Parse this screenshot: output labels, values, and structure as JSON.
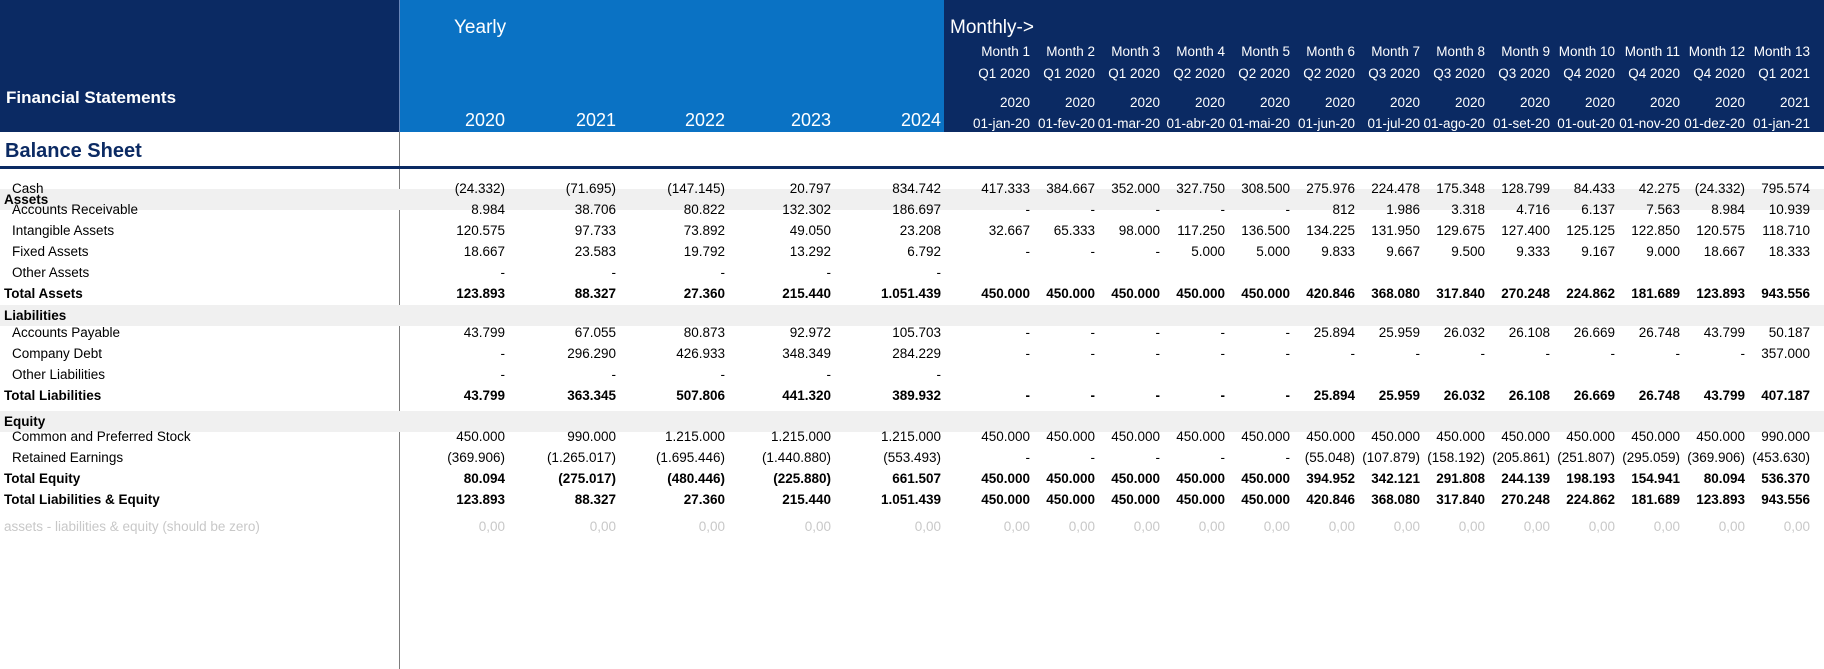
{
  "header": {
    "title": "Financial Statements",
    "yearly_label": "Yearly",
    "monthly_label": "Monthly->",
    "years": [
      "2020",
      "2021",
      "2022",
      "2023",
      "2024"
    ],
    "months": [
      {
        "m": "Month 1",
        "q": "Q1 2020",
        "y": "2020",
        "d": "01-jan-20"
      },
      {
        "m": "Month 2",
        "q": "Q1 2020",
        "y": "2020",
        "d": "01-fev-20"
      },
      {
        "m": "Month 3",
        "q": "Q1 2020",
        "y": "2020",
        "d": "01-mar-20"
      },
      {
        "m": "Month 4",
        "q": "Q2 2020",
        "y": "2020",
        "d": "01-abr-20"
      },
      {
        "m": "Month 5",
        "q": "Q2 2020",
        "y": "2020",
        "d": "01-mai-20"
      },
      {
        "m": "Month 6",
        "q": "Q2 2020",
        "y": "2020",
        "d": "01-jun-20"
      },
      {
        "m": "Month 7",
        "q": "Q3 2020",
        "y": "2020",
        "d": "01-jul-20"
      },
      {
        "m": "Month 8",
        "q": "Q3 2020",
        "y": "2020",
        "d": "01-ago-20"
      },
      {
        "m": "Month 9",
        "q": "Q3 2020",
        "y": "2020",
        "d": "01-set-20"
      },
      {
        "m": "Month 10",
        "q": "Q4 2020",
        "y": "2020",
        "d": "01-out-20"
      },
      {
        "m": "Month 11",
        "q": "Q4 2020",
        "y": "2020",
        "d": "01-nov-20"
      },
      {
        "m": "Month 12",
        "q": "Q4 2020",
        "y": "2020",
        "d": "01-dez-20"
      },
      {
        "m": "Month 13",
        "q": "Q1 2021",
        "y": "2021",
        "d": "01-jan-21"
      }
    ]
  },
  "sheet": {
    "title": "Balance Sheet",
    "sections": [
      {
        "label": "Assets",
        "rows": [
          {
            "label": "Cash",
            "yearly": [
              "(24.332)",
              "(71.695)",
              "(147.145)",
              "20.797",
              "834.742"
            ],
            "monthly": [
              "417.333",
              "384.667",
              "352.000",
              "327.750",
              "308.500",
              "275.976",
              "224.478",
              "175.348",
              "128.799",
              "84.433",
              "42.275",
              "(24.332)",
              "795.574"
            ]
          },
          {
            "label": "Accounts Receivable",
            "yearly": [
              "8.984",
              "38.706",
              "80.822",
              "132.302",
              "186.697"
            ],
            "monthly": [
              "-",
              "-",
              "-",
              "-",
              "-",
              "812",
              "1.986",
              "3.318",
              "4.716",
              "6.137",
              "7.563",
              "8.984",
              "10.939"
            ]
          },
          {
            "label": "Intangible Assets",
            "yearly": [
              "120.575",
              "97.733",
              "73.892",
              "49.050",
              "23.208"
            ],
            "monthly": [
              "32.667",
              "65.333",
              "98.000",
              "117.250",
              "136.500",
              "134.225",
              "131.950",
              "129.675",
              "127.400",
              "125.125",
              "122.850",
              "120.575",
              "118.710"
            ]
          },
          {
            "label": "Fixed Assets",
            "yearly": [
              "18.667",
              "23.583",
              "19.792",
              "13.292",
              "6.792"
            ],
            "monthly": [
              "-",
              "-",
              "-",
              "5.000",
              "5.000",
              "9.833",
              "9.667",
              "9.500",
              "9.333",
              "9.167",
              "9.000",
              "18.667",
              "18.333"
            ]
          },
          {
            "label": "Other Assets",
            "yearly": [
              "-",
              "-",
              "-",
              "-",
              "-"
            ],
            "monthly": []
          },
          {
            "label": "Total Assets",
            "total": true,
            "yearly": [
              "123.893",
              "88.327",
              "27.360",
              "215.440",
              "1.051.439"
            ],
            "monthly": [
              "450.000",
              "450.000",
              "450.000",
              "450.000",
              "450.000",
              "420.846",
              "368.080",
              "317.840",
              "270.248",
              "224.862",
              "181.689",
              "123.893",
              "943.556"
            ]
          }
        ]
      },
      {
        "label": "Liabilities",
        "rows": [
          {
            "label": "Accounts Payable",
            "yearly": [
              "43.799",
              "67.055",
              "80.873",
              "92.972",
              "105.703"
            ],
            "monthly": [
              "-",
              "-",
              "-",
              "-",
              "-",
              "25.894",
              "25.959",
              "26.032",
              "26.108",
              "26.669",
              "26.748",
              "43.799",
              "50.187"
            ]
          },
          {
            "label": "Company Debt",
            "yearly": [
              "-",
              "296.290",
              "426.933",
              "348.349",
              "284.229"
            ],
            "monthly": [
              "-",
              "-",
              "-",
              "-",
              "-",
              "-",
              "-",
              "-",
              "-",
              "-",
              "-",
              "-",
              "357.000"
            ]
          },
          {
            "label": "Other Liabilities",
            "yearly": [
              "-",
              "-",
              "-",
              "-",
              "-"
            ],
            "monthly": []
          },
          {
            "label": "Total Liabilities",
            "total": true,
            "yearly": [
              "43.799",
              "363.345",
              "507.806",
              "441.320",
              "389.932"
            ],
            "monthly": [
              "-",
              "-",
              "-",
              "-",
              "-",
              "25.894",
              "25.959",
              "26.032",
              "26.108",
              "26.669",
              "26.748",
              "43.799",
              "407.187"
            ]
          }
        ]
      },
      {
        "label": "Equity",
        "rows": [
          {
            "label": "Common and Preferred Stock",
            "yearly": [
              "450.000",
              "990.000",
              "1.215.000",
              "1.215.000",
              "1.215.000"
            ],
            "monthly": [
              "450.000",
              "450.000",
              "450.000",
              "450.000",
              "450.000",
              "450.000",
              "450.000",
              "450.000",
              "450.000",
              "450.000",
              "450.000",
              "450.000",
              "990.000"
            ]
          },
          {
            "label": "Retained Earnings",
            "yearly": [
              "(369.906)",
              "(1.265.017)",
              "(1.695.446)",
              "(1.440.880)",
              "(553.493)"
            ],
            "monthly": [
              "-",
              "-",
              "-",
              "-",
              "-",
              "(55.048)",
              "(107.879)",
              "(158.192)",
              "(205.861)",
              "(251.807)",
              "(295.059)",
              "(369.906)",
              "(453.630)"
            ]
          },
          {
            "label": "Total Equity",
            "total": true,
            "yearly": [
              "80.094",
              "(275.017)",
              "(480.446)",
              "(225.880)",
              "661.507"
            ],
            "monthly": [
              "450.000",
              "450.000",
              "450.000",
              "450.000",
              "450.000",
              "394.952",
              "342.121",
              "291.808",
              "244.139",
              "198.193",
              "154.941",
              "80.094",
              "536.370"
            ]
          },
          {
            "label": "Total Liabilities & Equity",
            "total": true,
            "yearly": [
              "123.893",
              "88.327",
              "27.360",
              "215.440",
              "1.051.439"
            ],
            "monthly": [
              "450.000",
              "450.000",
              "450.000",
              "450.000",
              "450.000",
              "420.846",
              "368.080",
              "317.840",
              "270.248",
              "224.862",
              "181.689",
              "123.893",
              "943.556"
            ]
          }
        ]
      }
    ],
    "check_row": {
      "label": "assets - liabilities & equity (should be zero)",
      "yearly": [
        "0,00",
        "0,00",
        "0,00",
        "0,00",
        "0,00"
      ],
      "monthly": [
        "0,00",
        "0,00",
        "0,00",
        "0,00",
        "0,00",
        "0,00",
        "0,00",
        "0,00",
        "0,00",
        "0,00",
        "0,00",
        "0,00",
        "0,00"
      ]
    }
  }
}
